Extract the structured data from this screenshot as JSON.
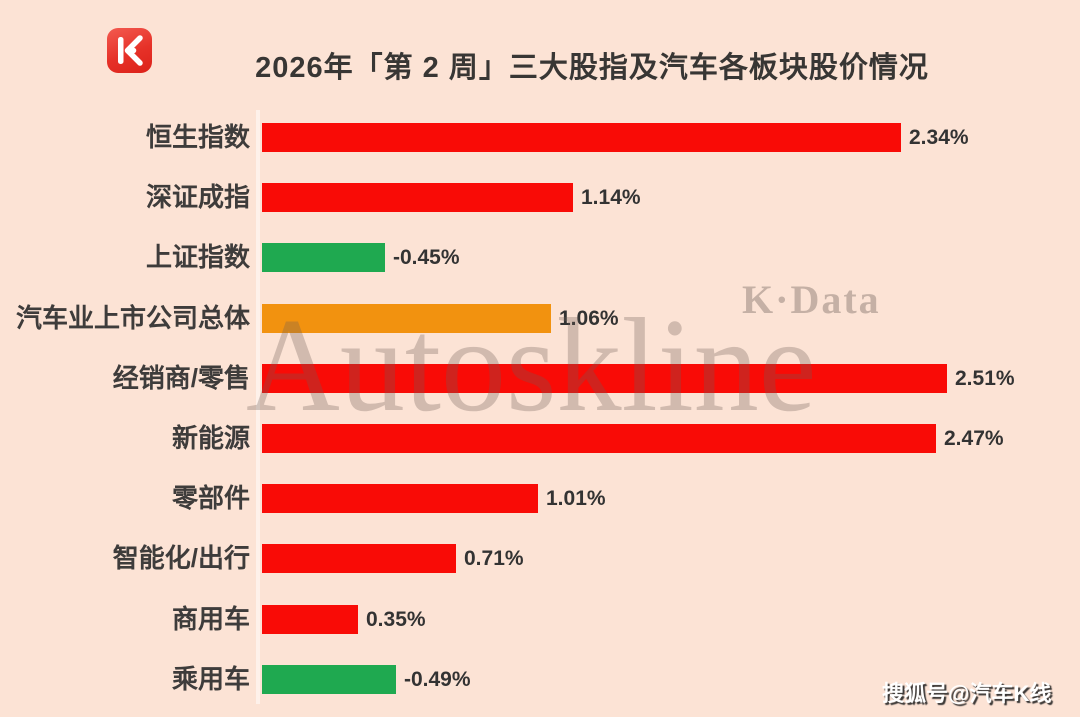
{
  "title": "2026年「第 2 周」三大股指及汽车各板块股价情况",
  "logo": {
    "glyph": "K"
  },
  "watermarks": {
    "kdata": "K·Data",
    "autoskline": "Autoskline",
    "sohu": "搜狐号@汽车K线"
  },
  "chart_data": {
    "type": "bar",
    "orientation": "horizontal",
    "title": "2026年「第 2 周」三大股指及汽车各板块股价情况",
    "categories": [
      "恒生指数",
      "深证成指",
      "上证指数",
      "汽车业上市公司总体",
      "经销商/零售",
      "新能源",
      "零部件",
      "智能化/出行",
      "商用车",
      "乘用车"
    ],
    "values": [
      2.34,
      1.14,
      -0.45,
      1.06,
      2.51,
      2.47,
      1.01,
      0.71,
      0.35,
      -0.49
    ],
    "value_labels": [
      "2.34%",
      "1.14%",
      "-0.45%",
      "1.06%",
      "2.51%",
      "2.47%",
      "1.01%",
      "0.71%",
      "0.35%",
      "-0.49%"
    ],
    "bar_colors": [
      "#f90b06",
      "#f90b06",
      "#1fa950",
      "#f2920f",
      "#f90b06",
      "#f90b06",
      "#f90b06",
      "#f90b06",
      "#f90b06",
      "#1fa950"
    ],
    "colors": {
      "positive": "#f90b06",
      "negative": "#1fa950",
      "auto_overall_highlight": "#f2920f",
      "background": "#fce3d5"
    },
    "xlim": [
      0,
      2.6
    ],
    "grid": false,
    "legend": false,
    "note": "negative values drawn as green bars extending right from baseline"
  }
}
